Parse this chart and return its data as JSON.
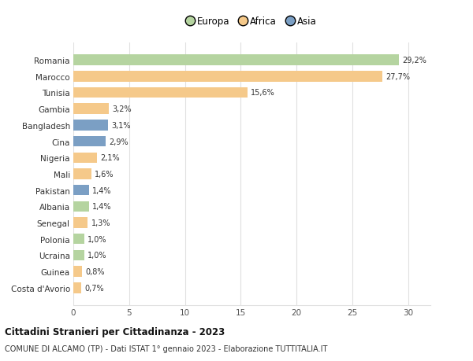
{
  "countries": [
    "Romania",
    "Marocco",
    "Tunisia",
    "Gambia",
    "Bangladesh",
    "Cina",
    "Nigeria",
    "Mali",
    "Pakistan",
    "Albania",
    "Senegal",
    "Polonia",
    "Ucraina",
    "Guinea",
    "Costa d'Avorio"
  ],
  "values": [
    29.2,
    27.7,
    15.6,
    3.2,
    3.1,
    2.9,
    2.1,
    1.6,
    1.4,
    1.4,
    1.3,
    1.0,
    1.0,
    0.8,
    0.7
  ],
  "labels": [
    "29,2%",
    "27,7%",
    "15,6%",
    "3,2%",
    "3,1%",
    "2,9%",
    "2,1%",
    "1,6%",
    "1,4%",
    "1,4%",
    "1,3%",
    "1,0%",
    "1,0%",
    "0,8%",
    "0,7%"
  ],
  "continents": [
    "Europa",
    "Africa",
    "Africa",
    "Africa",
    "Asia",
    "Asia",
    "Africa",
    "Africa",
    "Asia",
    "Europa",
    "Africa",
    "Europa",
    "Europa",
    "Africa",
    "Africa"
  ],
  "colors": {
    "Europa": "#b5d4a0",
    "Africa": "#f5c98a",
    "Asia": "#7b9fc4"
  },
  "legend_labels": [
    "Europa",
    "Africa",
    "Asia"
  ],
  "legend_colors": [
    "#b5d4a0",
    "#f5c98a",
    "#7b9fc4"
  ],
  "title": "Cittadini Stranieri per Cittadinanza - 2023",
  "subtitle": "COMUNE DI ALCAMO (TP) - Dati ISTAT 1° gennaio 2023 - Elaborazione TUTTITALIA.IT",
  "xlim": [
    0,
    32
  ],
  "xticks": [
    0,
    5,
    10,
    15,
    20,
    25,
    30
  ],
  "background_color": "#ffffff",
  "grid_color": "#e0e0e0",
  "bar_height": 0.65
}
